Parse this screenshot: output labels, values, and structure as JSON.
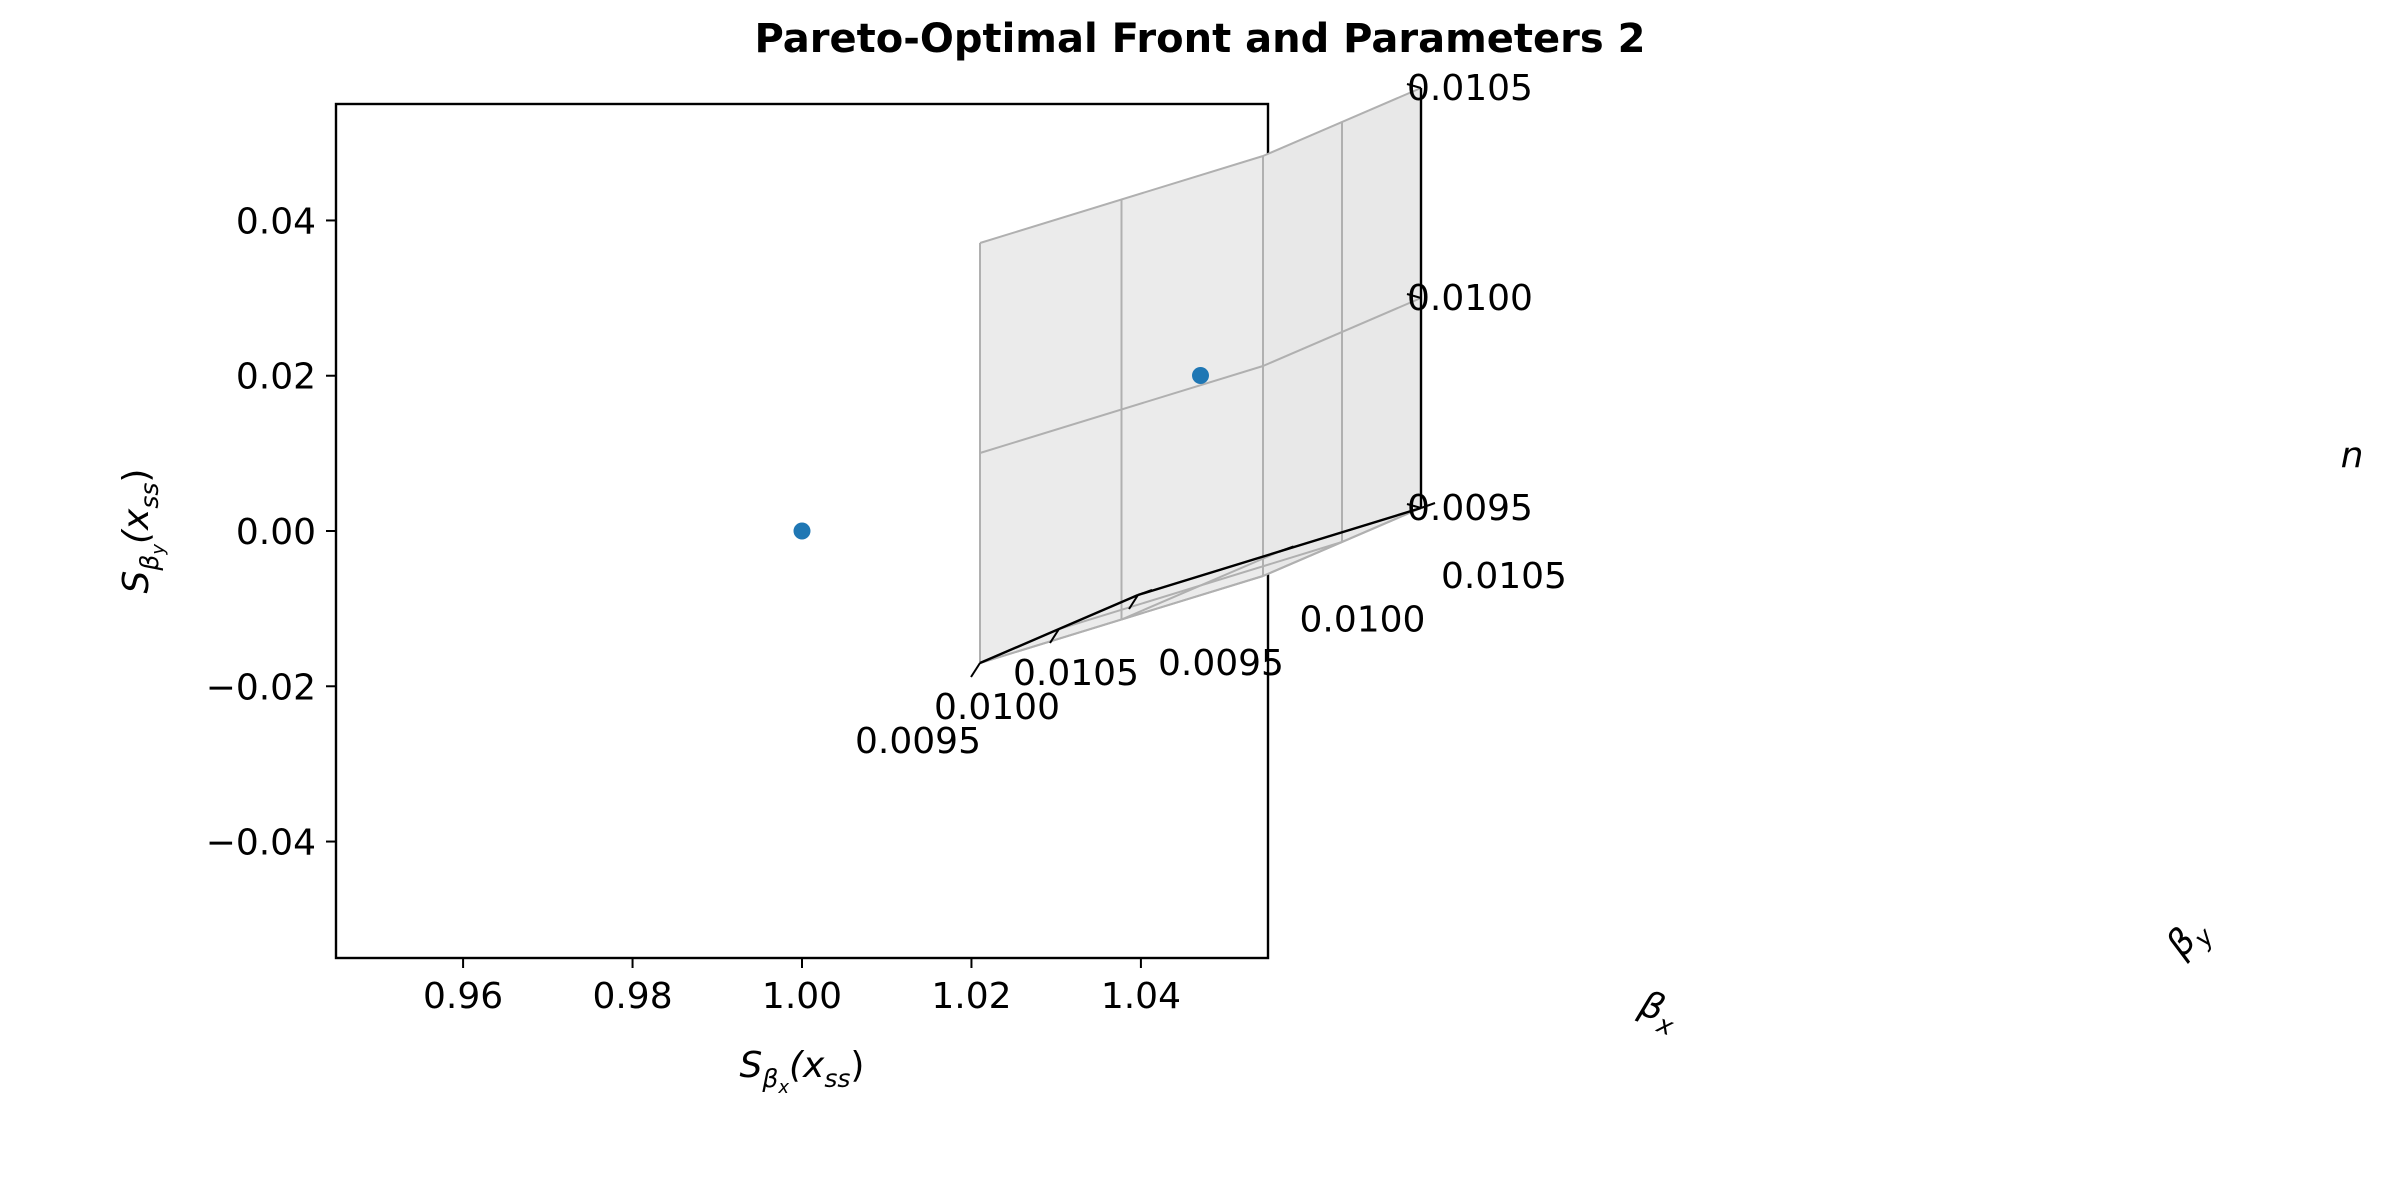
{
  "figure": {
    "title": "Pareto-Optimal Front and Parameters 2"
  },
  "chart_data": [
    {
      "type": "scatter",
      "xlim": [
        0.945,
        1.055
      ],
      "ylim": [
        -0.055,
        0.055
      ],
      "x_ticks": [
        0.96,
        0.98,
        1.0,
        1.02,
        1.04
      ],
      "x_tick_labels": [
        "0.96",
        "0.98",
        "1.00",
        "1.02",
        "1.04"
      ],
      "y_ticks": [
        -0.04,
        -0.02,
        0.0,
        0.02,
        0.04
      ],
      "y_tick_labels": [
        "−0.04",
        "−0.02",
        "0.00",
        "0.02",
        "0.04"
      ],
      "xlabel": {
        "base": "S",
        "sub": "β",
        "subsub": "x",
        "arg": "(x",
        "argsub": "ss",
        "close": ")"
      },
      "ylabel": {
        "base": "S",
        "sub": "β",
        "subsub": "y",
        "arg": "(x",
        "argsub": "ss",
        "close": ")"
      },
      "points": [
        {
          "x": 1.0,
          "y": 0.0
        }
      ],
      "marker_color": "#1f77b4",
      "grid": false
    },
    {
      "type": "scatter3d",
      "xlim": [
        0.0095,
        0.0105
      ],
      "ylim": [
        0.0095,
        0.0105
      ],
      "zlim": [
        0.0095,
        0.0105
      ],
      "x_tick_labels": [
        "0.0095",
        "0.0100",
        "0.0105"
      ],
      "y_tick_labels": [
        "0.0095",
        "0.0100",
        "0.0105"
      ],
      "z_tick_labels": [
        "0.0095",
        "0.0100",
        "0.0105"
      ],
      "xlabel": {
        "base": "β",
        "sub": "x"
      },
      "ylabel": {
        "base": "β",
        "sub": "y"
      },
      "zlabel": "n",
      "points": [
        {
          "x": 0.01,
          "y": 0.01,
          "z": 0.01
        }
      ],
      "marker_color": "#1f77b4",
      "grid": true
    }
  ]
}
